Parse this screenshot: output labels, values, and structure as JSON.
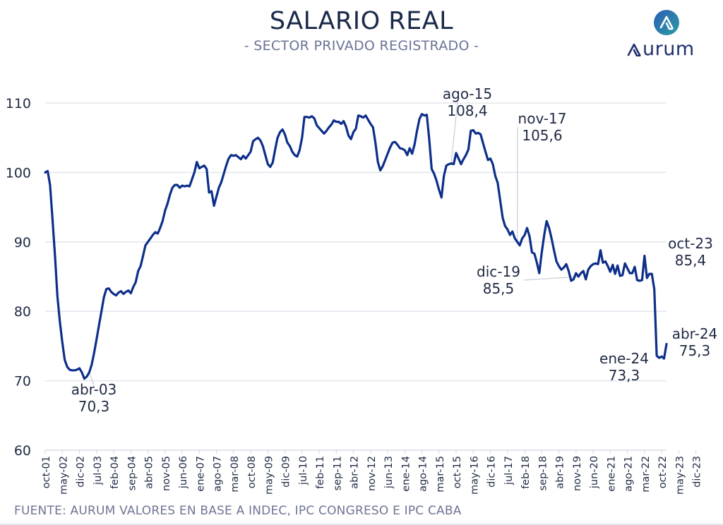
{
  "header": {
    "title": "SALARIO REAL",
    "subtitle": "- SECTOR PRIVADO REGISTRADO -"
  },
  "logo": {
    "wordmark": "urum",
    "brand": "Aurum",
    "colors": {
      "circle_start": "#2a5fb0",
      "circle_end": "#2e9aa8",
      "text": "#20306e"
    }
  },
  "footer": {
    "source": "FUENTE: AURUM VALORES EN BASE A INDEC, IPC CONGRESO E IPC CABA"
  },
  "chart_data": {
    "type": "line",
    "title": "SALARIO REAL",
    "subtitle": "- SECTOR PRIVADO REGISTRADO -",
    "xlabel": "",
    "ylabel": "",
    "ylim": [
      60,
      110
    ],
    "yticks": [
      60,
      70,
      80,
      90,
      100,
      110
    ],
    "grid": true,
    "legend": "none",
    "line_color": "#0d2f8a",
    "x_start": "oct-01",
    "x_end": "abr-24",
    "x_ticks": [
      "oct-01",
      "may-02",
      "dic-02",
      "jul-03",
      "feb-04",
      "sep-04",
      "abr-05",
      "nov-05",
      "jun-06",
      "ene-07",
      "ago-07",
      "mar-08",
      "oct-08",
      "may-09",
      "dic-09",
      "jul-10",
      "feb-11",
      "sep-11",
      "abr-12",
      "nov-12",
      "jun-13",
      "ene-14",
      "ago-14",
      "mar-15",
      "oct-15",
      "may-16",
      "dic-16",
      "jul-17",
      "feb-18",
      "sep-18",
      "abr-19",
      "nov-19",
      "jun-20",
      "ene-21",
      "ago-21",
      "mar-22",
      "oct-22",
      "may-23",
      "dic-23"
    ],
    "x_tick_step_months": 7,
    "series": [
      {
        "name": "Salario real",
        "values": [
          100.0,
          100.2,
          98.2,
          93.2,
          88.0,
          82.2,
          78.5,
          75.5,
          73.0,
          72.0,
          71.6,
          71.5,
          71.5,
          71.6,
          71.8,
          71.2,
          70.3,
          70.6,
          71.2,
          72.3,
          74.0,
          76.0,
          78.0,
          80.0,
          82.0,
          83.2,
          83.3,
          82.8,
          82.5,
          82.3,
          82.7,
          82.9,
          82.5,
          82.8,
          83.0,
          82.6,
          83.5,
          84.2,
          85.8,
          86.5,
          88.0,
          89.5,
          90.0,
          90.5,
          91.0,
          91.4,
          91.2,
          92.0,
          93.0,
          94.5,
          95.5,
          96.8,
          97.8,
          98.2,
          98.2,
          97.8,
          98.1,
          98.0,
          98.1,
          98.0,
          99.0,
          100.0,
          101.5,
          100.6,
          100.8,
          101.0,
          100.5,
          97.1,
          97.3,
          95.2,
          96.5,
          97.8,
          98.6,
          99.8,
          101.0,
          102.0,
          102.5,
          102.4,
          102.5,
          102.2,
          101.9,
          102.4,
          102.0,
          102.5,
          103.0,
          104.5,
          104.8,
          105.0,
          104.6,
          103.8,
          102.5,
          101.2,
          100.8,
          101.4,
          103.3,
          105.0,
          105.8,
          106.2,
          105.5,
          104.3,
          103.8,
          103.0,
          102.5,
          102.3,
          103.2,
          105.0,
          108.0,
          108.0,
          107.9,
          108.1,
          107.8,
          106.8,
          106.4,
          106.0,
          105.6,
          106.0,
          106.5,
          106.9,
          107.5,
          107.3,
          107.3,
          107.0,
          107.4,
          106.6,
          105.3,
          104.8,
          105.8,
          106.3,
          108.2,
          108.1,
          107.9,
          108.2,
          107.6,
          107.0,
          106.5,
          104.3,
          101.5,
          100.3,
          100.9,
          101.8,
          102.7,
          103.6,
          104.3,
          104.4,
          104.0,
          103.5,
          103.4,
          103.2,
          102.5,
          103.5,
          102.7,
          104.0,
          106.0,
          107.7,
          108.4,
          108.2,
          108.3,
          104.8,
          100.5,
          99.8,
          98.8,
          97.5,
          96.4,
          99.5,
          101.0,
          101.2,
          101.3,
          101.2,
          102.8,
          102.0,
          101.2,
          101.9,
          102.5,
          103.3,
          106.0,
          106.1,
          105.6,
          105.7,
          105.5,
          104.2,
          103.0,
          101.8,
          102.0,
          101.2,
          99.5,
          98.5,
          96.0,
          93.5,
          92.3,
          91.8,
          91.0,
          91.5,
          90.5,
          90.0,
          89.5,
          90.5,
          91.0,
          92.0,
          90.8,
          88.5,
          88.3,
          87.0,
          85.5,
          88.5,
          91.0,
          93.0,
          92.0,
          90.5,
          88.8,
          87.2,
          86.5,
          86.0,
          86.3,
          86.8,
          85.8,
          84.4,
          84.6,
          85.5,
          85.0,
          85.5,
          85.8,
          84.6,
          86.0,
          86.5,
          86.8,
          86.9,
          86.8,
          88.8,
          87.0,
          87.2,
          86.5,
          85.7,
          86.7,
          85.4,
          86.6,
          85.1,
          85.2,
          86.9,
          86.2,
          85.5,
          85.5,
          86.4,
          84.5,
          84.4,
          84.5,
          88.0,
          84.8,
          85.4,
          85.4,
          83.2,
          73.6,
          73.3,
          73.5,
          73.2,
          75.3
        ]
      }
    ],
    "annotations": [
      {
        "label": "abr-03",
        "value": "70,3",
        "month_index": 18
      },
      {
        "label": "ago-15",
        "value": "108,4",
        "month_index": 166
      },
      {
        "label": "nov-17",
        "value": "105,6",
        "month_index": 193
      },
      {
        "label": "dic-19",
        "value": "85,5",
        "month_index": 218
      },
      {
        "label": "oct-23",
        "value": "85,4",
        "month_index": 264
      },
      {
        "label": "ene-24",
        "value": "73,3",
        "month_index": 267
      },
      {
        "label": "abr-24",
        "value": "75,3",
        "month_index": 270
      }
    ]
  }
}
